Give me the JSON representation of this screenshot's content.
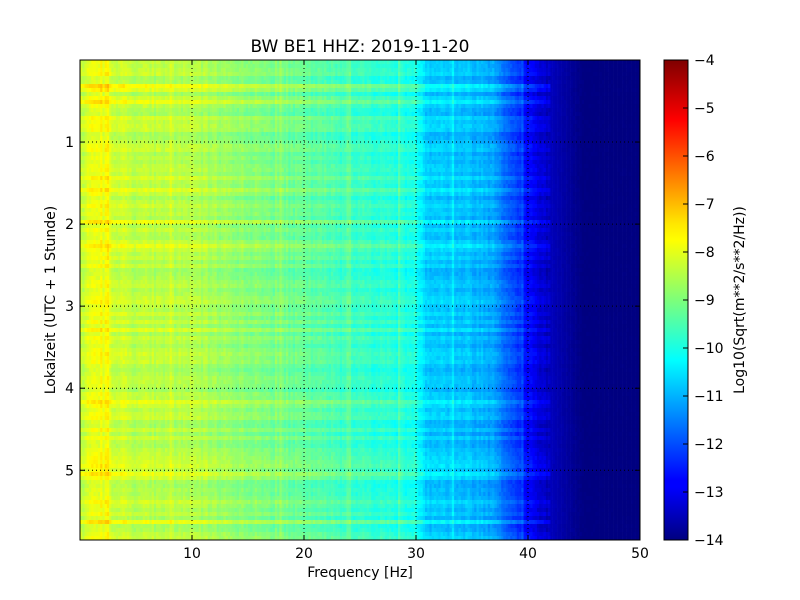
{
  "chart_data": {
    "type": "heatmap",
    "title": "BW BE1 HHZ: 2019-11-20",
    "xlabel": "Frequency [Hz]",
    "ylabel": "Lokalzeit (UTC + 1 Stunde)",
    "xlim": [
      0,
      50
    ],
    "ylim": [
      5.85,
      0
    ],
    "x_ticks": [
      10,
      20,
      30,
      40,
      50
    ],
    "x_tick_labels": [
      "10",
      "20",
      "30",
      "40",
      "50"
    ],
    "y_ticks": [
      1,
      2,
      3,
      4,
      5
    ],
    "y_tick_labels": [
      "1",
      "2",
      "3",
      "4",
      "5"
    ],
    "grid": true,
    "colormap": "jet",
    "colorbar": {
      "label": "Log10(Sqrt(m**2/s**2/Hz))",
      "range": [
        -14,
        -4
      ],
      "ticks": [
        -4,
        -5,
        -6,
        -7,
        -8,
        -9,
        -10,
        -11,
        -12,
        -13,
        -14
      ],
      "tick_labels": [
        "−4",
        "−5",
        "−6",
        "−7",
        "−8",
        "−9",
        "−10",
        "−11",
        "−12",
        "−13",
        "−14"
      ]
    },
    "spectrum_profile": {
      "frequency_hz": [
        0,
        1,
        2,
        5,
        10,
        15,
        20,
        25,
        30,
        31,
        35,
        37,
        38,
        40,
        42,
        44,
        45,
        50
      ],
      "log_amplitude": [
        -8.4,
        -8.0,
        -8.1,
        -8.4,
        -8.5,
        -8.9,
        -9.3,
        -9.7,
        -10.0,
        -10.7,
        -10.9,
        -11.1,
        -11.7,
        -12.7,
        -13.4,
        -13.8,
        -14.0,
        -14.0
      ]
    }
  }
}
